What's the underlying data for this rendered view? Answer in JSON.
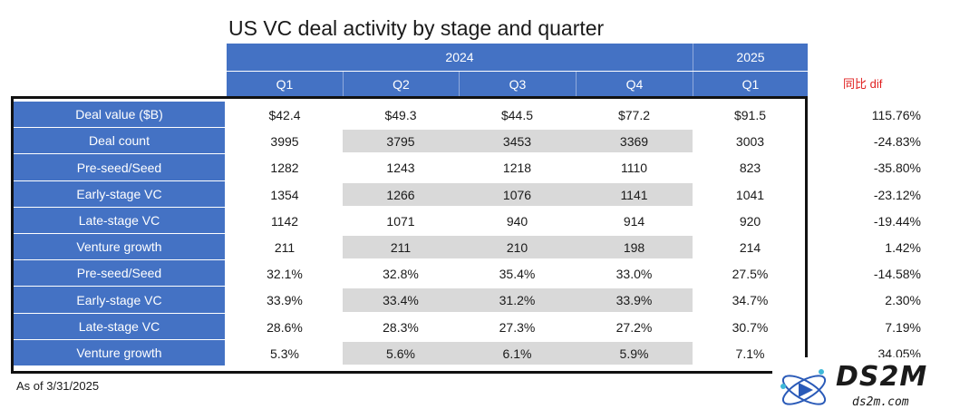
{
  "title": "US VC deal activity by stage and quarter",
  "years": {
    "y2024": "2024",
    "y2025": "2025"
  },
  "quarters": [
    "Q1",
    "Q2",
    "Q3",
    "Q4",
    "Q1"
  ],
  "dif_header": "同比 dif",
  "rows": [
    {
      "label": "Deal value ($B)",
      "values": [
        "$42.4",
        "$49.3",
        "$44.5",
        "$77.2",
        "$91.5"
      ],
      "dif": "115.76%"
    },
    {
      "label": "Deal count",
      "values": [
        "3995",
        "3795",
        "3453",
        "3369",
        "3003"
      ],
      "dif": "-24.83%"
    },
    {
      "label": "Pre-seed/Seed",
      "values": [
        "1282",
        "1243",
        "1218",
        "1110",
        "823"
      ],
      "dif": "-35.80%"
    },
    {
      "label": "Early-stage VC",
      "values": [
        "1354",
        "1266",
        "1076",
        "1141",
        "1041"
      ],
      "dif": "-23.12%"
    },
    {
      "label": "Late-stage VC",
      "values": [
        "1142",
        "1071",
        "940",
        "914",
        "920"
      ],
      "dif": "-19.44%"
    },
    {
      "label": "Venture growth",
      "values": [
        "211",
        "211",
        "210",
        "198",
        "214"
      ],
      "dif": "1.42%"
    },
    {
      "label": "Pre-seed/Seed",
      "values": [
        "32.1%",
        "32.8%",
        "35.4%",
        "33.0%",
        "27.5%"
      ],
      "dif": "-14.58%"
    },
    {
      "label": "Early-stage VC",
      "values": [
        "33.9%",
        "33.4%",
        "31.2%",
        "33.9%",
        "34.7%"
      ],
      "dif": "2.30%"
    },
    {
      "label": "Late-stage VC",
      "values": [
        "28.6%",
        "28.3%",
        "27.3%",
        "27.2%",
        "30.7%"
      ],
      "dif": "7.19%"
    },
    {
      "label": "Venture growth",
      "values": [
        "5.3%",
        "5.6%",
        "6.1%",
        "5.9%",
        "7.1%"
      ],
      "dif": "34.05%"
    }
  ],
  "footnote": "As of 3/31/2025",
  "watermark": {
    "text": "DS2M",
    "sub": "ds2m.com"
  },
  "colors": {
    "header_blue": "#4472c4",
    "shade_gray": "#d9d9d9",
    "dif_red": "#e02020"
  }
}
